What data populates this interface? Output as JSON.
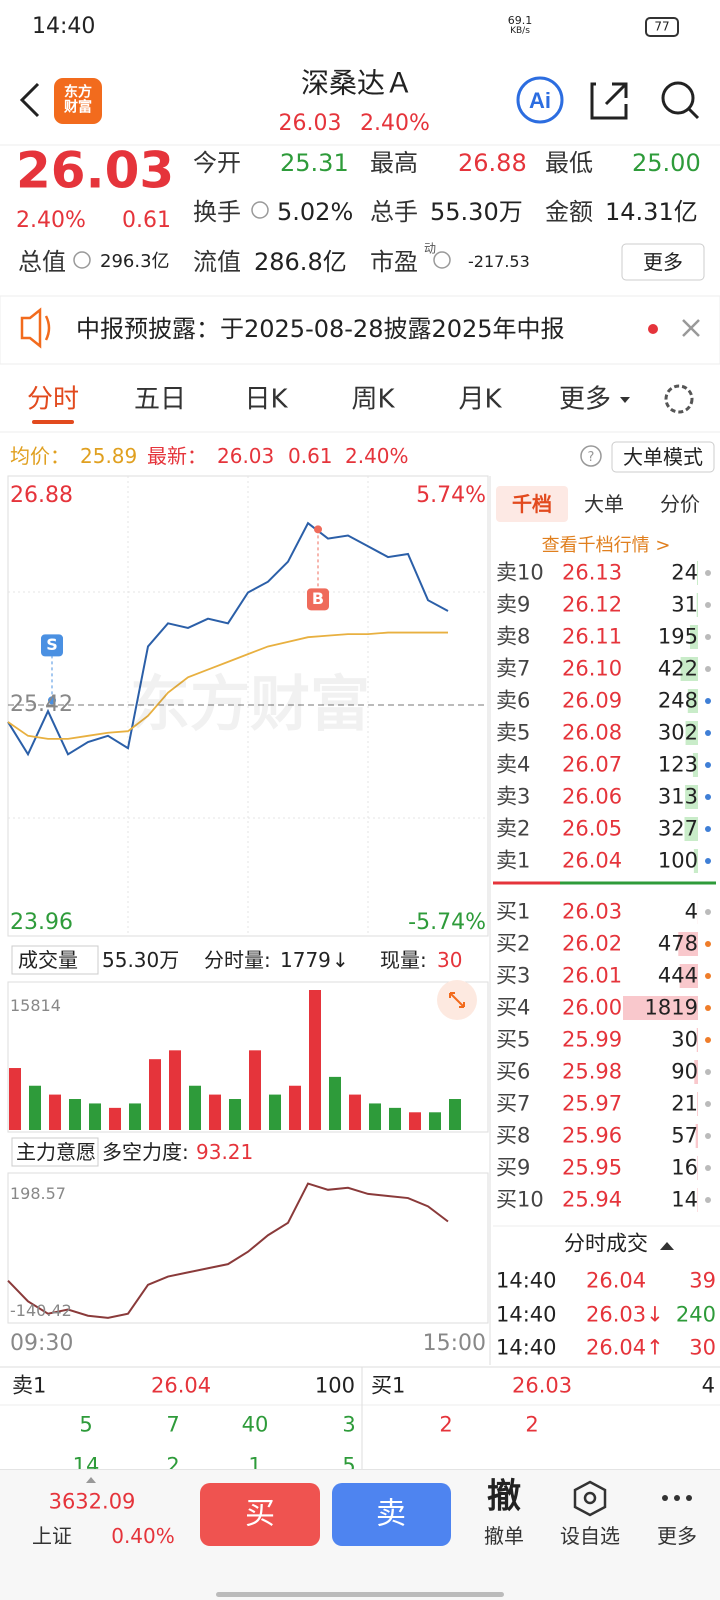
{
  "status_bar": {
    "time": "14:40",
    "net_speed": "69.1",
    "net_unit": "KB/s",
    "battery": "77"
  },
  "header": {
    "logo": "东方财富",
    "title": "深桑达Ａ",
    "price": "26.03",
    "change_pct": "2.40%"
  },
  "quote": {
    "price": "26.03",
    "change_pct": "2.40%",
    "change": "0.61",
    "fields": [
      {
        "label": "今开",
        "value": "25.31"
      },
      {
        "label": "最高",
        "value": "26.88"
      },
      {
        "label": "最低",
        "value": "25.00"
      },
      {
        "label": "换手",
        "value": "5.02%"
      },
      {
        "label": "总手",
        "value": "55.30万"
      },
      {
        "label": "金额",
        "value": "14.31亿"
      },
      {
        "label": "总值",
        "value": "296.3亿"
      },
      {
        "label": "流值",
        "value": "286.8亿"
      },
      {
        "label": "市盈",
        "value": "-217.53"
      }
    ],
    "pe_mark": "动",
    "more": "更多"
  },
  "notice": {
    "text": "中报预披露：于2025-08-28披露2025年中报"
  },
  "tabs": [
    "分时",
    "五日",
    "日K",
    "周K",
    "月K",
    "更多"
  ],
  "info": {
    "avg_label": "均价：",
    "avg": "25.89",
    "latest_label": "最新：",
    "latest": "26.03",
    "change": "0.61",
    "change_pct": "2.40%",
    "mode": "大单模式"
  },
  "watermark": "东方财富",
  "chart_data": [
    {
      "type": "line",
      "x": [
        0,
        10,
        20,
        30,
        40,
        50,
        60,
        70,
        80,
        90,
        100,
        110,
        120,
        130,
        140,
        150,
        160,
        170,
        180,
        190,
        200,
        210,
        220
      ],
      "xlim": [
        0,
        240
      ],
      "ylim": [
        23.96,
        26.88
      ],
      "yticks": [
        23.96,
        25.42,
        26.88
      ],
      "y2lim": [
        -5.74,
        5.74
      ],
      "y2ticks": [
        {
          "value": -5.74,
          "label": "-5.74%"
        },
        {
          "value": 5.74,
          "label": "5.74%"
        }
      ],
      "series": [
        {
          "color": "#2b5fa8",
          "values": [
            25.31,
            25.1,
            25.38,
            25.1,
            25.18,
            25.22,
            25.14,
            25.8,
            25.95,
            25.92,
            25.98,
            25.95,
            26.15,
            26.22,
            26.35,
            26.6,
            26.5,
            26.52,
            26.45,
            26.38,
            26.4,
            26.1,
            26.03
          ]
        },
        {
          "color": "#e8b040",
          "values": [
            25.31,
            25.22,
            25.2,
            25.2,
            25.22,
            25.24,
            25.25,
            25.35,
            25.5,
            25.6,
            25.65,
            25.7,
            25.75,
            25.8,
            25.83,
            25.86,
            25.87,
            25.88,
            25.88,
            25.89,
            25.89,
            25.89,
            25.89
          ]
        }
      ],
      "markers": [
        {
          "label": "S",
          "x": 22,
          "value": 25.45,
          "color": "#4a90e2"
        },
        {
          "label": "B",
          "x": 155,
          "value": 26.56,
          "color": "#ef6b5b"
        }
      ]
    },
    {
      "type": "bar",
      "header": "成交量",
      "total": "55.30万",
      "per_min_label": "分时量:",
      "per_min": "1779",
      "per_min_arrow": "↓",
      "current_label": "现量:",
      "current": "30",
      "x": [
        0,
        10,
        20,
        30,
        40,
        50,
        60,
        70,
        80,
        90,
        100,
        110,
        120,
        130,
        140,
        150,
        160,
        170,
        180,
        190,
        200,
        210,
        220
      ],
      "xlim": [
        0,
        240
      ],
      "ylim": [
        0,
        15814
      ],
      "yticks": [
        15814
      ],
      "values": [
        7000,
        5000,
        4000,
        3500,
        3000,
        2500,
        3000,
        8000,
        9000,
        5000,
        4000,
        3500,
        9000,
        4000,
        5000,
        15814,
        6000,
        4000,
        3000,
        2500,
        2000,
        2000,
        3500
      ],
      "colors": [
        "#e5343b",
        "#2e9b3a",
        "#e5343b",
        "#2e9b3a",
        "#2e9b3a",
        "#e5343b",
        "#2e9b3a",
        "#e5343b",
        "#e5343b",
        "#2e9b3a",
        "#e5343b",
        "#2e9b3a",
        "#e5343b",
        "#2e9b3a",
        "#e5343b",
        "#e5343b",
        "#2e9b3a",
        "#e5343b",
        "#2e9b3a",
        "#2e9b3a",
        "#e5343b",
        "#2e9b3a",
        "#2e9b3a"
      ]
    },
    {
      "type": "line",
      "header": "主力意愿",
      "label": "多空力度:",
      "value": "93.21",
      "x": [
        0,
        10,
        20,
        30,
        40,
        50,
        60,
        70,
        80,
        90,
        100,
        110,
        120,
        130,
        140,
        150,
        160,
        170,
        180,
        190,
        200,
        210,
        220
      ],
      "xlim": [
        0,
        240
      ],
      "xticks": [
        {
          "value": 0,
          "label": "09:30"
        },
        {
          "value": 240,
          "label": "15:00"
        }
      ],
      "ylim": [
        -140.42,
        198.57
      ],
      "yticks": [
        -140.42,
        198.57
      ],
      "series": [
        {
          "color": "#8a3a3a",
          "values": [
            -50,
            -100,
            -130,
            -120,
            -135,
            -140,
            -130,
            -60,
            -40,
            -30,
            -20,
            -10,
            20,
            60,
            90,
            185,
            170,
            175,
            160,
            155,
            150,
            130,
            93.21
          ]
        }
      ]
    }
  ],
  "order_book": {
    "tabs": [
      "千档",
      "大单",
      "分价"
    ],
    "link": "查看千档行情 >",
    "asks": [
      {
        "label": "卖10",
        "price": "26.13",
        "volume": 24
      },
      {
        "label": "卖9",
        "price": "26.12",
        "volume": 31
      },
      {
        "label": "卖8",
        "price": "26.11",
        "volume": 195
      },
      {
        "label": "卖7",
        "price": "26.10",
        "volume": 422
      },
      {
        "label": "卖6",
        "price": "26.09",
        "volume": 248
      },
      {
        "label": "卖5",
        "price": "26.08",
        "volume": 302
      },
      {
        "label": "卖4",
        "price": "26.07",
        "volume": 123
      },
      {
        "label": "卖3",
        "price": "26.06",
        "volume": 313
      },
      {
        "label": "卖2",
        "price": "26.05",
        "volume": 327
      },
      {
        "label": "卖1",
        "price": "26.04",
        "volume": 100
      }
    ],
    "bids": [
      {
        "label": "买1",
        "price": "26.03",
        "volume": 4
      },
      {
        "label": "买2",
        "price": "26.02",
        "volume": 478
      },
      {
        "label": "买3",
        "price": "26.01",
        "volume": 444
      },
      {
        "label": "买4",
        "price": "26.00",
        "volume": 1819
      },
      {
        "label": "买5",
        "price": "25.99",
        "volume": 30
      },
      {
        "label": "买6",
        "price": "25.98",
        "volume": 90
      },
      {
        "label": "买7",
        "price": "25.97",
        "volume": 21
      },
      {
        "label": "买8",
        "price": "25.96",
        "volume": 57
      },
      {
        "label": "买9",
        "price": "25.95",
        "volume": 16
      },
      {
        "label": "买10",
        "price": "25.94",
        "volume": 14
      }
    ]
  },
  "trades": {
    "title": "分时成交",
    "rows": [
      [
        "14:40",
        "26.04",
        "39"
      ],
      [
        "14:40",
        "26.03↓",
        "240"
      ],
      [
        "14:40",
        "26.04↑",
        "30"
      ]
    ]
  },
  "bottom_panel": {
    "ask": [
      "卖1",
      "26.04",
      "100"
    ],
    "bid": [
      "买1",
      "26.03",
      "4"
    ],
    "left_rows": [
      [
        "5",
        "7",
        "40",
        "3"
      ],
      [
        "14",
        "2",
        "1",
        "5"
      ]
    ],
    "right_rows": [
      [
        "2",
        "2"
      ]
    ]
  },
  "nav": {
    "index_value": "3632.09",
    "index_name": "上证",
    "index_change": "0.40%",
    "buy": "买",
    "sell": "卖",
    "cancel_icon": "撤",
    "cancel": "撤单",
    "watch": "设自选",
    "more": "更多"
  }
}
